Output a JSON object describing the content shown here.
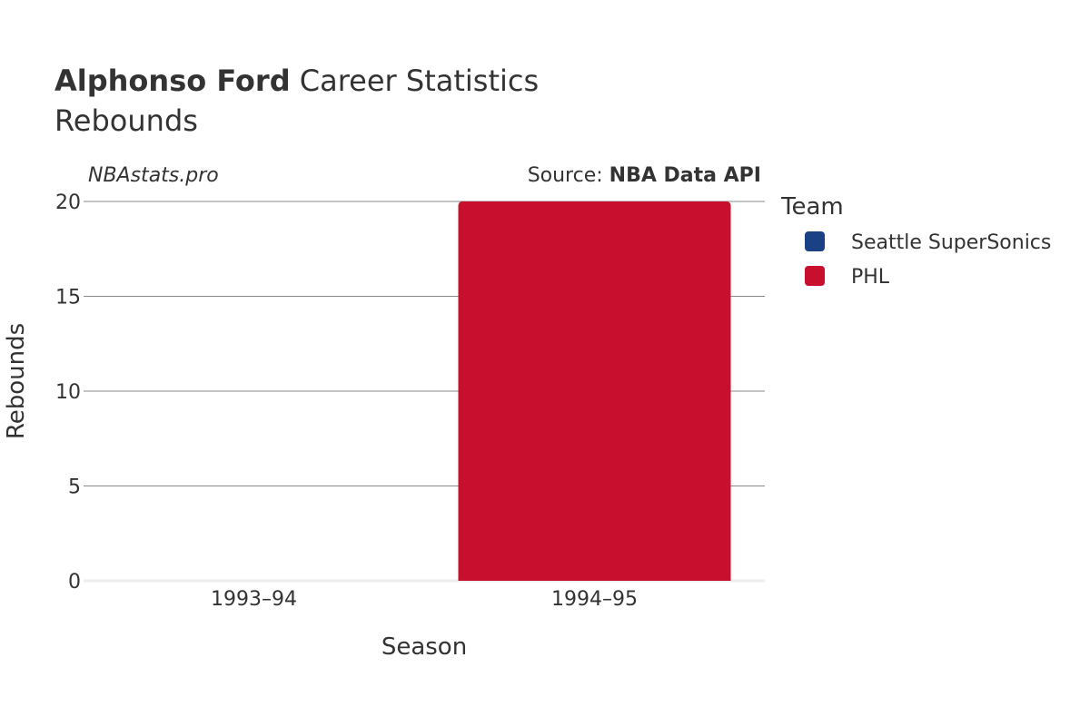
{
  "header": {
    "title_bold": "Alphonso Ford",
    "title_rest": " Career Statistics",
    "subtitle": "Rebounds"
  },
  "credit": "NBAstats.pro",
  "source": {
    "prefix": "Source: ",
    "name": "NBA Data API"
  },
  "chart_data": {
    "type": "bar",
    "xlabel": "Season",
    "ylabel": "Rebounds",
    "categories": [
      "1993–94",
      "1994–95"
    ],
    "series": [
      {
        "name": "Seattle SuperSonics",
        "color": "#1a4183",
        "values": [
          0,
          null
        ]
      },
      {
        "name": "PHL",
        "color": "#c8102e",
        "values": [
          null,
          20
        ]
      }
    ],
    "ylim": [
      0,
      20
    ],
    "yticks": [
      0,
      5,
      10,
      15,
      20
    ],
    "grid": true,
    "legend": {
      "title": "Team",
      "placement": "right"
    }
  }
}
